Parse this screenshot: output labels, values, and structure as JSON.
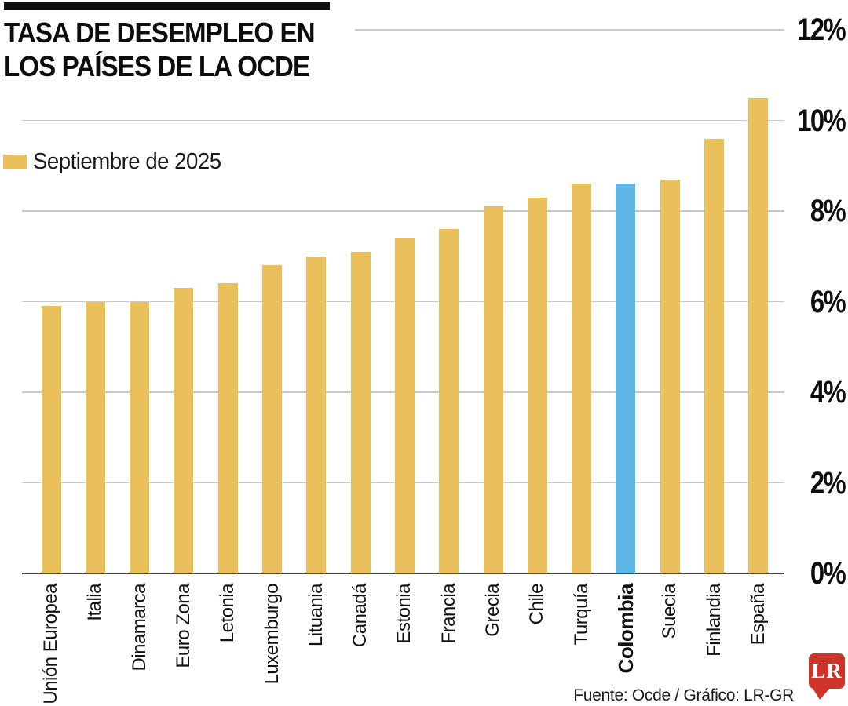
{
  "header": {
    "title_line1": "TASA DE DESEMPLEO EN",
    "title_line2": "LOS PAÍSES DE LA OCDE"
  },
  "legend": {
    "label": "Septiembre de 2025"
  },
  "footer": {
    "credit": "Fuente: Ocde / Gráfico: LR-GR",
    "logo_text": "LR"
  },
  "colors": {
    "bar_gold": "#e9c05c",
    "highlight_blue": "#5db8e7",
    "logo_red": "#cf342a",
    "gridline": "#c9c9c9",
    "baseline": "#4a4a4a"
  },
  "chart_data": {
    "type": "bar",
    "title": "Tasa de desempleo en los países de la OCDE",
    "period_label": "Septiembre de 2025",
    "unit": "%",
    "categories": [
      "Unión Europea",
      "Italia",
      "Dinamarca",
      "Euro Zona",
      "Letonia",
      "Luxemburgo",
      "Lituania",
      "Canadá",
      "Estonia",
      "Francia",
      "Grecia",
      "Chile",
      "Turquía",
      "Colombia",
      "Suecia",
      "Finlandia",
      "España"
    ],
    "values": [
      5.9,
      6.0,
      6.0,
      6.3,
      6.4,
      6.8,
      7.0,
      7.1,
      7.4,
      7.6,
      8.1,
      8.3,
      8.6,
      8.6,
      8.7,
      9.6,
      10.5
    ],
    "highlight_category": "Colombia",
    "bar_color": "#e9c05c",
    "highlight_color": "#5db8e7",
    "ylim": [
      0,
      12
    ],
    "ytick_values": [
      0,
      2,
      4,
      6,
      8,
      10,
      12
    ],
    "ytick_labels": [
      "0%",
      "2%",
      "4%",
      "6%",
      "8%",
      "10%",
      "12%"
    ],
    "grid": true,
    "legend_position": "top-left",
    "xlabel_rotation": -90
  }
}
